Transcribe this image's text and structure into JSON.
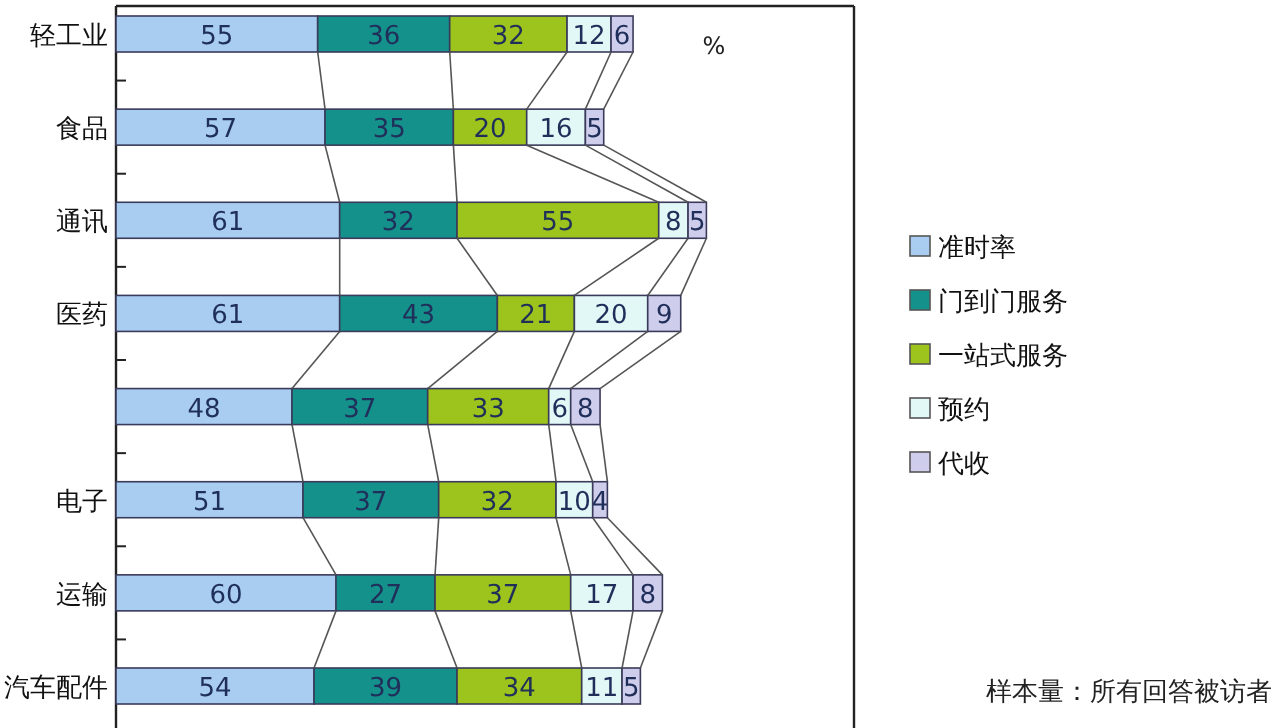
{
  "chart_data": {
    "type": "bar",
    "orientation": "horizontal",
    "stacked": true,
    "data_labels": true,
    "tick_labels": "y",
    "legend": "right",
    "categories": [
      "轻工业",
      "食品",
      "通讯",
      "医药",
      null,
      "电子",
      "运输",
      "汽车配件"
    ],
    "series": [
      {
        "name": "准时率",
        "color": "#a9cdf0",
        "values": [
          55,
          57,
          61,
          61,
          48,
          51,
          60,
          54
        ]
      },
      {
        "name": "门到门服务",
        "color": "#15918c",
        "values": [
          36,
          35,
          32,
          43,
          37,
          37,
          27,
          39
        ]
      },
      {
        "name": "一站式服务",
        "color": "#9dc41c",
        "values": [
          32,
          20,
          55,
          21,
          33,
          32,
          37,
          34
        ]
      },
      {
        "name": "预约",
        "color": "#e2f8f6",
        "values": [
          12,
          16,
          8,
          20,
          6,
          10,
          17,
          11
        ]
      },
      {
        "name": "代收",
        "color": "#cfcdec",
        "values": [
          6,
          5,
          5,
          9,
          8,
          4,
          8,
          5
        ]
      }
    ],
    "annotations": [
      "%",
      "样本量：所有回答被访者"
    ]
  }
}
